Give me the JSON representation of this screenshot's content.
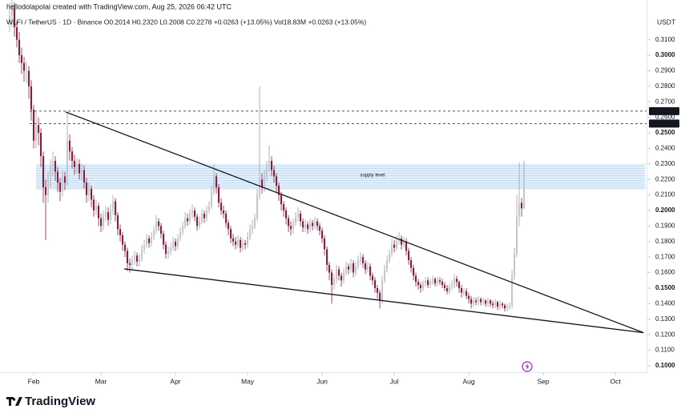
{
  "chart_data": {
    "type": "candlestick",
    "title": "hellodolapolai created with TradingView.com, Aug 25, 2026 06:42 UTC",
    "subtitle": "WLFI / TetherUS · 1D · Binance  O0.2014 H0.2320 L0.2008 C0.2278 +0.0263 (+13.05%)  Vol18.83M +0.0263 (+13.05%)",
    "ylabel": "USDT",
    "watermark": "TradingView",
    "up_color": "#c3c7d1",
    "down_color": "#8c1c3c",
    "xlim": [
      -4,
      264.3
    ],
    "xticks": [
      {
        "value": 10,
        "label": "Feb"
      },
      {
        "value": 38,
        "label": "Mar"
      },
      {
        "value": 69,
        "label": "Apr"
      },
      {
        "value": 99,
        "label": "May"
      },
      {
        "value": 130,
        "label": "Jun"
      },
      {
        "value": 160,
        "label": "Jul"
      },
      {
        "value": 191,
        "label": "Aug"
      },
      {
        "value": 222,
        "label": "Sep"
      },
      {
        "value": 252,
        "label": "Oct"
      }
    ],
    "ylim": [
      0.0974,
      0.3356
    ],
    "yticks": [
      {
        "value": 0.1,
        "label": "0.1000"
      },
      {
        "value": 0.11,
        "label": "0.1100"
      },
      {
        "value": 0.12,
        "label": "0.1200"
      },
      {
        "value": 0.13,
        "label": "0.1300"
      },
      {
        "value": 0.14,
        "label": "0.1400"
      },
      {
        "value": 0.15,
        "label": "0.1500"
      },
      {
        "value": 0.16,
        "label": "0.1600"
      },
      {
        "value": 0.17,
        "label": "0.1700"
      },
      {
        "value": 0.18,
        "label": "0.1800"
      },
      {
        "value": 0.19,
        "label": "0.1900"
      },
      {
        "value": 0.2,
        "label": "0.2000"
      },
      {
        "value": 0.21,
        "label": "0.2100"
      },
      {
        "value": 0.22,
        "label": "0.2200"
      },
      {
        "value": 0.23,
        "label": "0.2300"
      },
      {
        "value": 0.24,
        "label": "0.2400"
      },
      {
        "value": 0.25,
        "label": "0.2500"
      },
      {
        "value": 0.26,
        "label": "0.2600"
      },
      {
        "value": 0.27,
        "label": "0.2700"
      },
      {
        "value": 0.28,
        "label": "0.2800"
      },
      {
        "value": 0.29,
        "label": "0.2900"
      },
      {
        "value": 0.3,
        "label": "0.3000"
      },
      {
        "value": 0.31,
        "label": "0.3100"
      }
    ],
    "zone": {
      "text": "supply level",
      "low": 0.2134,
      "high": 0.23,
      "start": 11
    },
    "price_lines": [
      {
        "value": 0.264,
        "label": "0.2640"
      },
      {
        "value": 0.256,
        "label": "0.2560"
      }
    ],
    "trendlines": [
      {
        "points": [
          [
            23.3,
            0.2635
          ],
          [
            263.7,
            0.1213
          ]
        ]
      },
      {
        "points": [
          [
            47.7,
            0.1624
          ],
          [
            263.7,
            0.1213
          ]
        ]
      }
    ],
    "candles": {
      "open": [
        0.32,
        0.325,
        0.33,
        0.318,
        0.31,
        0.3,
        0.295,
        0.29,
        0.29,
        0.28,
        0.265,
        0.245,
        0.255,
        0.25,
        0.235,
        0.215,
        0.21,
        0.22,
        0.228,
        0.232,
        0.225,
        0.218,
        0.212,
        0.222,
        0.218,
        0.245,
        0.238,
        0.232,
        0.228,
        0.23,
        0.224,
        0.226,
        0.218,
        0.21,
        0.214,
        0.207,
        0.2,
        0.203,
        0.195,
        0.19,
        0.196,
        0.199,
        0.194,
        0.2,
        0.206,
        0.197,
        0.188,
        0.184,
        0.178,
        0.174,
        0.166,
        0.165,
        0.168,
        0.171,
        0.167,
        0.169,
        0.175,
        0.178,
        0.182,
        0.179,
        0.183,
        0.187,
        0.193,
        0.19,
        0.185,
        0.178,
        0.172,
        0.174,
        0.176,
        0.18,
        0.177,
        0.182,
        0.186,
        0.19,
        0.195,
        0.193,
        0.198,
        0.2,
        0.196,
        0.19,
        0.193,
        0.198,
        0.195,
        0.2,
        0.203,
        0.212,
        0.222,
        0.215,
        0.205,
        0.2,
        0.198,
        0.192,
        0.188,
        0.182,
        0.18,
        0.178,
        0.181,
        0.176,
        0.179,
        0.178,
        0.183,
        0.188,
        0.19,
        0.195,
        0.21,
        0.22,
        0.215,
        0.222,
        0.228,
        0.232,
        0.226,
        0.222,
        0.216,
        0.21,
        0.204,
        0.2,
        0.195,
        0.19,
        0.188,
        0.192,
        0.196,
        0.198,
        0.193,
        0.189,
        0.191,
        0.188,
        0.192,
        0.19,
        0.193,
        0.19,
        0.187,
        0.182,
        0.175,
        0.165,
        0.16,
        0.152,
        0.156,
        0.162,
        0.158,
        0.155,
        0.16,
        0.164,
        0.162,
        0.166,
        0.16,
        0.164,
        0.168,
        0.17,
        0.166,
        0.162,
        0.164,
        0.158,
        0.155,
        0.15,
        0.147,
        0.142,
        0.155,
        0.162,
        0.168,
        0.172,
        0.178,
        0.176,
        0.18,
        0.182,
        0.178,
        0.18,
        0.174,
        0.168,
        0.163,
        0.158,
        0.154,
        0.152,
        0.15,
        0.153,
        0.155,
        0.152,
        0.154,
        0.156,
        0.153,
        0.155,
        0.154,
        0.152,
        0.15,
        0.148,
        0.151,
        0.152,
        0.156,
        0.154,
        0.15,
        0.147,
        0.148,
        0.145,
        0.143,
        0.14,
        0.142,
        0.141,
        0.143,
        0.141,
        0.142,
        0.14,
        0.142,
        0.14,
        0.139,
        0.141,
        0.138,
        0.14,
        0.139,
        0.137,
        0.138,
        0.139,
        0.158,
        0.172,
        0.196,
        0.205,
        0.2014
      ],
      "high": [
        0.334,
        0.336,
        0.334,
        0.322,
        0.315,
        0.305,
        0.299,
        0.296,
        0.293,
        0.284,
        0.268,
        0.264,
        0.26,
        0.253,
        0.238,
        0.22,
        0.225,
        0.233,
        0.238,
        0.235,
        0.228,
        0.221,
        0.226,
        0.225,
        0.263,
        0.249,
        0.241,
        0.236,
        0.234,
        0.233,
        0.23,
        0.229,
        0.221,
        0.218,
        0.216,
        0.21,
        0.207,
        0.205,
        0.198,
        0.2,
        0.203,
        0.202,
        0.204,
        0.21,
        0.208,
        0.199,
        0.191,
        0.186,
        0.18,
        0.176,
        0.169,
        0.171,
        0.174,
        0.173,
        0.172,
        0.178,
        0.181,
        0.185,
        0.184,
        0.186,
        0.19,
        0.197,
        0.195,
        0.192,
        0.187,
        0.18,
        0.177,
        0.179,
        0.183,
        0.182,
        0.185,
        0.189,
        0.193,
        0.199,
        0.198,
        0.201,
        0.204,
        0.202,
        0.198,
        0.196,
        0.201,
        0.2,
        0.203,
        0.206,
        0.216,
        0.23,
        0.224,
        0.217,
        0.208,
        0.203,
        0.2,
        0.194,
        0.19,
        0.185,
        0.183,
        0.184,
        0.183,
        0.182,
        0.181,
        0.186,
        0.191,
        0.194,
        0.198,
        0.214,
        0.28,
        0.224,
        0.226,
        0.232,
        0.242,
        0.235,
        0.229,
        0.224,
        0.218,
        0.212,
        0.206,
        0.202,
        0.197,
        0.193,
        0.195,
        0.199,
        0.202,
        0.2,
        0.195,
        0.194,
        0.193,
        0.195,
        0.194,
        0.196,
        0.195,
        0.192,
        0.189,
        0.184,
        0.177,
        0.167,
        0.162,
        0.159,
        0.165,
        0.164,
        0.16,
        0.163,
        0.167,
        0.166,
        0.169,
        0.168,
        0.167,
        0.171,
        0.173,
        0.172,
        0.168,
        0.167,
        0.166,
        0.16,
        0.157,
        0.152,
        0.149,
        0.158,
        0.165,
        0.171,
        0.175,
        0.182,
        0.181,
        0.184,
        0.186,
        0.184,
        0.183,
        0.182,
        0.176,
        0.17,
        0.165,
        0.16,
        0.156,
        0.154,
        0.155,
        0.157,
        0.157,
        0.156,
        0.158,
        0.157,
        0.157,
        0.157,
        0.156,
        0.154,
        0.152,
        0.153,
        0.155,
        0.159,
        0.158,
        0.155,
        0.152,
        0.15,
        0.15,
        0.147,
        0.145,
        0.144,
        0.144,
        0.145,
        0.144,
        0.144,
        0.143,
        0.144,
        0.143,
        0.142,
        0.143,
        0.142,
        0.142,
        0.141,
        0.14,
        0.14,
        0.141,
        0.162,
        0.176,
        0.21,
        0.231,
        0.208,
        0.232
      ],
      "low": [
        0.315,
        0.318,
        0.312,
        0.305,
        0.295,
        0.288,
        0.283,
        0.282,
        0.272,
        0.258,
        0.24,
        0.24,
        0.242,
        0.228,
        0.205,
        0.181,
        0.205,
        0.215,
        0.222,
        0.219,
        0.212,
        0.206,
        0.209,
        0.213,
        0.216,
        0.232,
        0.227,
        0.223,
        0.224,
        0.22,
        0.219,
        0.214,
        0.205,
        0.206,
        0.202,
        0.196,
        0.197,
        0.19,
        0.186,
        0.187,
        0.193,
        0.19,
        0.191,
        0.197,
        0.193,
        0.184,
        0.18,
        0.174,
        0.17,
        0.161,
        0.16,
        0.162,
        0.165,
        0.164,
        0.164,
        0.167,
        0.172,
        0.176,
        0.176,
        0.177,
        0.181,
        0.185,
        0.187,
        0.182,
        0.175,
        0.169,
        0.169,
        0.171,
        0.174,
        0.174,
        0.175,
        0.18,
        0.184,
        0.188,
        0.19,
        0.191,
        0.195,
        0.193,
        0.187,
        0.188,
        0.191,
        0.192,
        0.193,
        0.198,
        0.201,
        0.21,
        0.211,
        0.202,
        0.197,
        0.195,
        0.189,
        0.184,
        0.179,
        0.177,
        0.175,
        0.176,
        0.173,
        0.174,
        0.175,
        0.176,
        0.181,
        0.185,
        0.188,
        0.193,
        0.207,
        0.211,
        0.212,
        0.219,
        0.225,
        0.222,
        0.218,
        0.212,
        0.206,
        0.2,
        0.196,
        0.191,
        0.186,
        0.184,
        0.185,
        0.19,
        0.193,
        0.19,
        0.186,
        0.186,
        0.185,
        0.186,
        0.187,
        0.188,
        0.187,
        0.184,
        0.179,
        0.171,
        0.161,
        0.155,
        0.14,
        0.149,
        0.153,
        0.155,
        0.151,
        0.153,
        0.158,
        0.159,
        0.16,
        0.157,
        0.158,
        0.162,
        0.165,
        0.163,
        0.159,
        0.16,
        0.155,
        0.152,
        0.147,
        0.143,
        0.137,
        0.14,
        0.153,
        0.16,
        0.166,
        0.17,
        0.173,
        0.174,
        0.178,
        0.175,
        0.176,
        0.171,
        0.165,
        0.16,
        0.155,
        0.151,
        0.149,
        0.147,
        0.148,
        0.151,
        0.15,
        0.15,
        0.152,
        0.151,
        0.151,
        0.152,
        0.15,
        0.148,
        0.146,
        0.146,
        0.149,
        0.15,
        0.151,
        0.147,
        0.144,
        0.145,
        0.143,
        0.14,
        0.137,
        0.138,
        0.139,
        0.139,
        0.139,
        0.139,
        0.138,
        0.138,
        0.138,
        0.137,
        0.137,
        0.136,
        0.136,
        0.137,
        0.135,
        0.135,
        0.136,
        0.137,
        0.155,
        0.17,
        0.19,
        0.196,
        0.2008
      ],
      "close": [
        0.325,
        0.33,
        0.318,
        0.31,
        0.3,
        0.295,
        0.29,
        0.29,
        0.28,
        0.265,
        0.245,
        0.255,
        0.25,
        0.235,
        0.215,
        0.21,
        0.22,
        0.228,
        0.232,
        0.225,
        0.218,
        0.212,
        0.222,
        0.218,
        0.245,
        0.238,
        0.232,
        0.228,
        0.23,
        0.224,
        0.226,
        0.218,
        0.21,
        0.214,
        0.207,
        0.2,
        0.203,
        0.195,
        0.19,
        0.196,
        0.199,
        0.194,
        0.2,
        0.206,
        0.197,
        0.188,
        0.184,
        0.178,
        0.174,
        0.166,
        0.165,
        0.168,
        0.171,
        0.167,
        0.169,
        0.175,
        0.178,
        0.182,
        0.179,
        0.183,
        0.187,
        0.193,
        0.19,
        0.185,
        0.178,
        0.172,
        0.174,
        0.176,
        0.18,
        0.177,
        0.182,
        0.186,
        0.19,
        0.195,
        0.193,
        0.198,
        0.2,
        0.196,
        0.19,
        0.193,
        0.198,
        0.195,
        0.2,
        0.203,
        0.212,
        0.222,
        0.215,
        0.205,
        0.2,
        0.198,
        0.192,
        0.188,
        0.182,
        0.18,
        0.178,
        0.181,
        0.176,
        0.179,
        0.178,
        0.183,
        0.188,
        0.19,
        0.195,
        0.21,
        0.22,
        0.215,
        0.222,
        0.228,
        0.232,
        0.226,
        0.222,
        0.216,
        0.21,
        0.204,
        0.2,
        0.195,
        0.19,
        0.188,
        0.192,
        0.196,
        0.198,
        0.193,
        0.189,
        0.191,
        0.188,
        0.192,
        0.19,
        0.193,
        0.19,
        0.187,
        0.182,
        0.175,
        0.165,
        0.16,
        0.152,
        0.156,
        0.162,
        0.158,
        0.155,
        0.16,
        0.164,
        0.162,
        0.166,
        0.16,
        0.164,
        0.168,
        0.17,
        0.166,
        0.162,
        0.164,
        0.158,
        0.155,
        0.15,
        0.147,
        0.142,
        0.155,
        0.162,
        0.168,
        0.172,
        0.178,
        0.176,
        0.18,
        0.182,
        0.178,
        0.18,
        0.174,
        0.168,
        0.163,
        0.158,
        0.154,
        0.152,
        0.15,
        0.153,
        0.155,
        0.152,
        0.154,
        0.156,
        0.153,
        0.155,
        0.154,
        0.152,
        0.15,
        0.148,
        0.151,
        0.152,
        0.156,
        0.154,
        0.15,
        0.147,
        0.148,
        0.145,
        0.143,
        0.14,
        0.142,
        0.141,
        0.143,
        0.141,
        0.142,
        0.14,
        0.142,
        0.14,
        0.139,
        0.141,
        0.138,
        0.14,
        0.139,
        0.137,
        0.138,
        0.139,
        0.158,
        0.172,
        0.196,
        0.205,
        0.2014,
        0.2278
      ]
    }
  }
}
